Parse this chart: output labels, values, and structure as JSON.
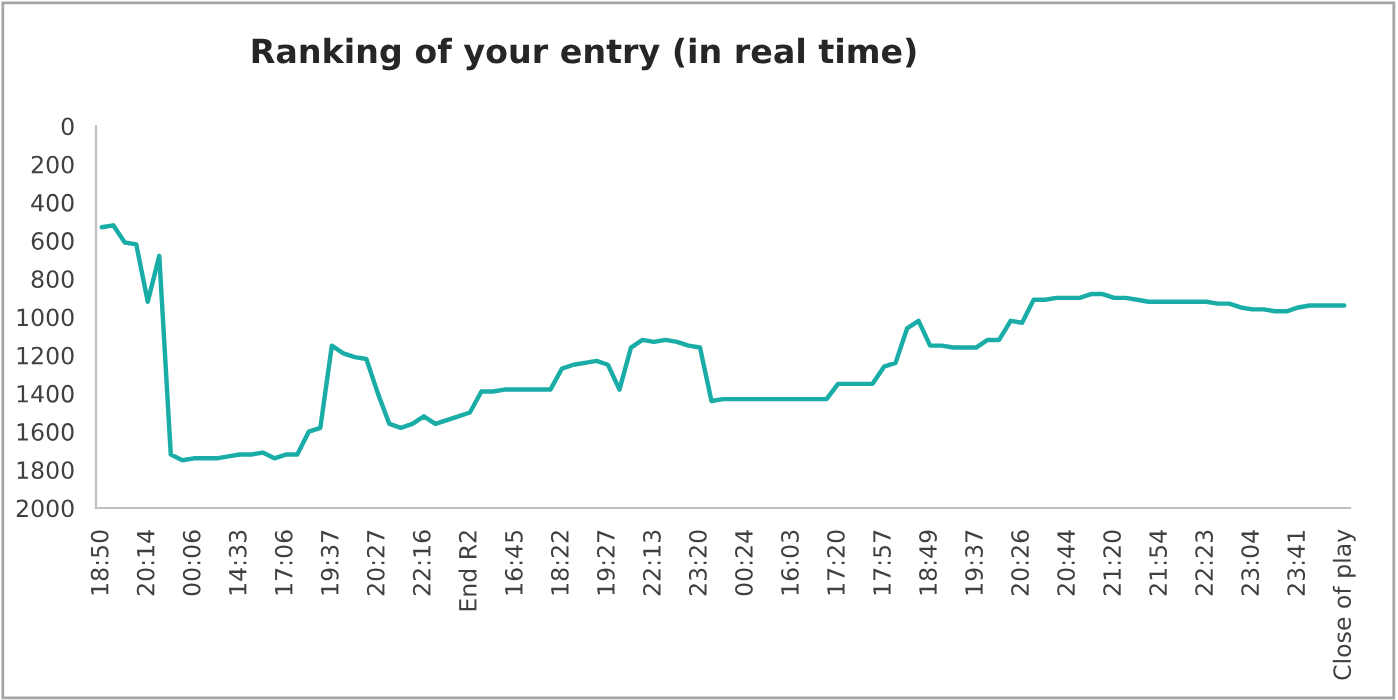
{
  "chart_data": {
    "type": "line",
    "title": "Ranking of your entry (in real time)",
    "categories": [
      "18:50",
      null,
      null,
      null,
      "20:14",
      null,
      null,
      null,
      "00:06",
      null,
      null,
      null,
      "14:33",
      null,
      null,
      null,
      "17:06",
      null,
      null,
      null,
      "19:37",
      null,
      null,
      null,
      "20:27",
      null,
      null,
      null,
      "22:16",
      null,
      null,
      null,
      "End R2",
      null,
      null,
      null,
      "16:45",
      null,
      null,
      null,
      "18:22",
      null,
      null,
      null,
      "19:27",
      null,
      null,
      null,
      "22:13",
      null,
      null,
      null,
      "23:20",
      null,
      null,
      null,
      "00:24",
      null,
      null,
      null,
      "16:03",
      null,
      null,
      null,
      "17:20",
      null,
      null,
      null,
      "17:57",
      null,
      null,
      null,
      "18:49",
      null,
      null,
      null,
      "19:37",
      null,
      null,
      null,
      "20:26",
      null,
      null,
      null,
      "20:44",
      null,
      null,
      null,
      "21:20",
      null,
      null,
      null,
      "21:54",
      null,
      null,
      null,
      "22:23",
      null,
      null,
      null,
      "23:04",
      null,
      null,
      null,
      "23:41",
      null,
      null,
      null,
      "Close of play"
    ],
    "series": [
      {
        "color": "#1aada8",
        "values": [
          530,
          520,
          610,
          620,
          920,
          680,
          1720,
          1750,
          1740,
          1740,
          1740,
          1730,
          1720,
          1720,
          1710,
          1740,
          1720,
          1720,
          1600,
          1580,
          1150,
          1190,
          1210,
          1220,
          1400,
          1560,
          1580,
          1560,
          1520,
          1560,
          1540,
          1520,
          1500,
          1390,
          1390,
          1380,
          1380,
          1380,
          1380,
          1380,
          1270,
          1250,
          1240,
          1230,
          1250,
          1380,
          1160,
          1120,
          1130,
          1120,
          1130,
          1150,
          1160,
          1440,
          1430,
          1430,
          1430,
          1430,
          1430,
          1430,
          1430,
          1430,
          1430,
          1430,
          1350,
          1350,
          1350,
          1350,
          1260,
          1240,
          1060,
          1020,
          1150,
          1150,
          1160,
          1160,
          1160,
          1120,
          1120,
          1020,
          1030,
          910,
          910,
          900,
          900,
          900,
          880,
          880,
          900,
          900,
          910,
          920,
          920,
          920,
          920,
          920,
          920,
          930,
          930,
          950,
          960,
          960,
          970,
          970,
          950,
          940,
          940,
          940,
          940
        ]
      }
    ],
    "ylim": [
      2000,
      0
    ],
    "yticks": [
      0,
      200,
      400,
      600,
      800,
      1000,
      1200,
      1400,
      1600,
      1800,
      2000
    ],
    "grid": false,
    "marker": "none",
    "line_style": "solid"
  }
}
